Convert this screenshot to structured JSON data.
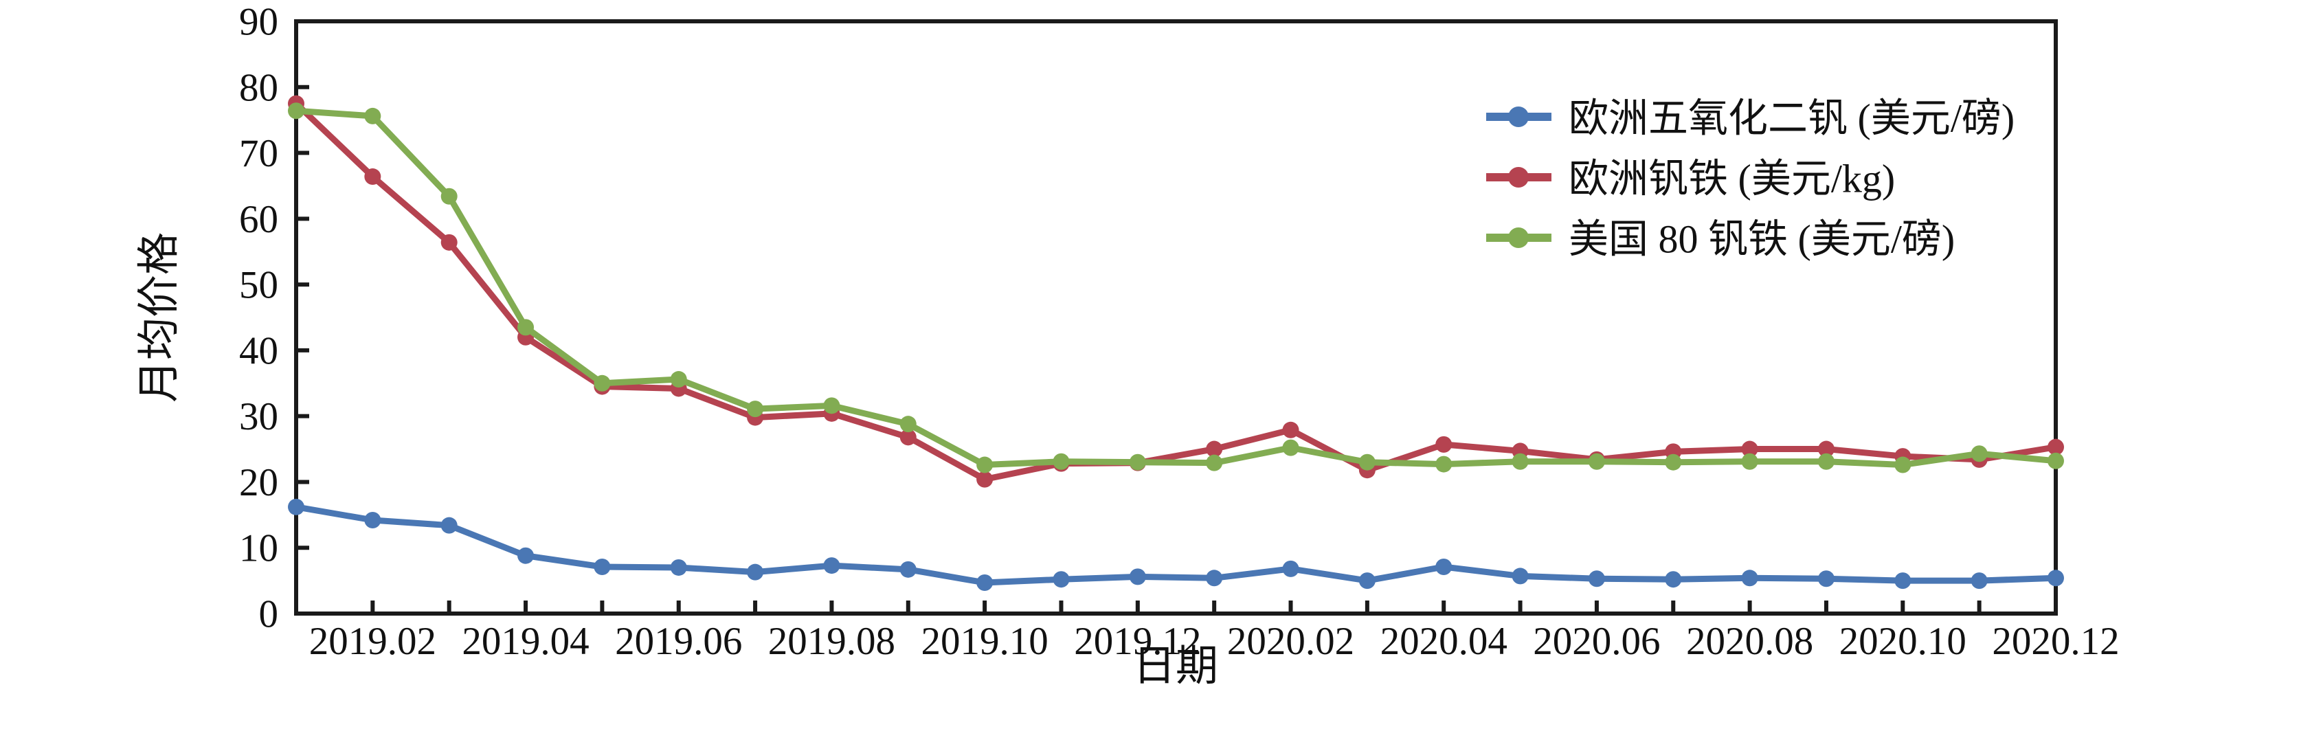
{
  "chart_data": {
    "type": "line",
    "title": "",
    "xlabel": "日期",
    "ylabel": "月均价格",
    "ylim": [
      0,
      90
    ],
    "yticks": [
      0,
      10,
      20,
      30,
      40,
      50,
      60,
      70,
      80,
      90
    ],
    "grid": false,
    "legend_position": "inside-upper-right",
    "x": [
      "2019.01",
      "2019.02",
      "2019.03",
      "2019.04",
      "2019.05",
      "2019.06",
      "2019.07",
      "2019.08",
      "2019.09",
      "2019.10",
      "2019.11",
      "2019.12",
      "2020.01",
      "2020.02",
      "2020.03",
      "2020.04",
      "2020.05",
      "2020.06",
      "2020.07",
      "2020.08",
      "2020.09",
      "2020.10",
      "2020.11",
      "2020.12"
    ],
    "x_tick_labels": [
      "2019.02",
      "2019.04",
      "2019.06",
      "2019.08",
      "2019.10",
      "2019.12",
      "2020.02",
      "2020.04",
      "2020.06",
      "2020.08",
      "2020.10",
      "2020.12"
    ],
    "series": [
      {
        "name": "欧洲五氧化二钒 (美元/磅)",
        "color": "#4a77b4",
        "marker": "circle",
        "values": [
          16.2,
          14.2,
          13.4,
          8.8,
          7.1,
          7.0,
          6.3,
          7.3,
          6.7,
          4.7,
          5.2,
          5.6,
          5.4,
          6.8,
          5.0,
          7.1,
          5.7,
          5.3,
          5.2,
          5.4,
          5.3,
          5.0,
          5.0,
          5.4
        ]
      },
      {
        "name": "欧洲钒铁 (美元/kg)",
        "color": "#b54350",
        "marker": "circle",
        "values": [
          77.5,
          66.4,
          56.4,
          42.0,
          34.5,
          34.2,
          29.8,
          30.4,
          26.8,
          20.4,
          22.8,
          22.9,
          25.0,
          27.9,
          21.8,
          25.7,
          24.7,
          23.4,
          24.6,
          25.0,
          25.0,
          23.9,
          23.4,
          25.3
        ]
      },
      {
        "name": "美国 80 钒铁 (美元/磅)",
        "color": "#82ac52",
        "marker": "circle",
        "values": [
          76.4,
          75.6,
          63.4,
          43.5,
          35.0,
          35.6,
          31.1,
          31.6,
          28.8,
          22.6,
          23.1,
          23.0,
          22.9,
          25.2,
          23.0,
          22.7,
          23.1,
          23.1,
          23.0,
          23.1,
          23.1,
          22.6,
          24.3,
          23.2
        ]
      }
    ],
    "axis_color": "#1a1a1a"
  }
}
